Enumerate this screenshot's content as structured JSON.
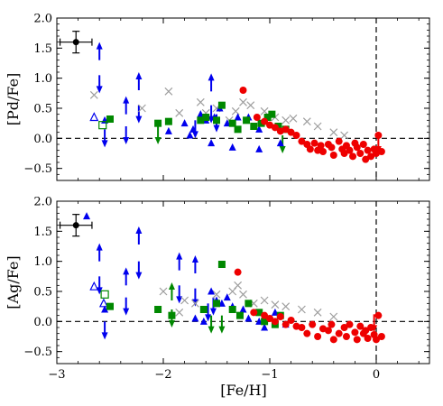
{
  "figure": {
    "xlabel": "[Fe/H]"
  },
  "chart_data": [
    {
      "type": "scatter",
      "ylabel": "[Pd/Fe]",
      "xlim": [
        -3.0,
        0.5
      ],
      "ylim": [
        -0.7,
        2.0
      ],
      "xticks": [
        -3,
        -2,
        -1,
        0
      ],
      "xtick_labels": [
        "−3",
        "−2",
        "−1",
        "0"
      ],
      "yticks": [
        -0.5,
        0.0,
        0.5,
        1.0,
        1.5,
        2.0
      ],
      "ytick_labels": [
        "−0.5",
        "0.0",
        "0.5",
        "1.0",
        "1.5",
        "2.0"
      ],
      "dashed_lines": {
        "y": 0.0,
        "x": 0.0
      },
      "error_bar": {
        "x": -2.82,
        "y": 1.6,
        "xerr": 0.15,
        "yerr": 0.18,
        "color": "#000000"
      },
      "series": [
        {
          "marker": "cross",
          "color": "#9e9e9e",
          "points": [
            [
              -2.65,
              0.72
            ],
            [
              -1.95,
              0.78
            ],
            [
              -2.2,
              0.5
            ],
            [
              -1.85,
              0.42
            ],
            [
              -1.65,
              0.6
            ],
            [
              -1.6,
              0.42
            ],
            [
              -1.5,
              0.5
            ],
            [
              -1.38,
              0.3
            ],
            [
              -1.32,
              0.45
            ],
            [
              -1.25,
              0.6
            ],
            [
              -1.18,
              0.55
            ],
            [
              -1.05,
              0.45
            ],
            [
              -0.95,
              0.35
            ],
            [
              -0.85,
              0.3
            ],
            [
              -0.78,
              0.33
            ],
            [
              -0.65,
              0.28
            ],
            [
              -0.55,
              0.2
            ],
            [
              -0.4,
              0.1
            ],
            [
              -0.3,
              0.05
            ]
          ]
        },
        {
          "marker": "triangle",
          "color": "#0000ee",
          "points": [
            [
              -2.55,
              0.3
            ],
            [
              -1.95,
              0.12
            ],
            [
              -1.8,
              0.25
            ],
            [
              -1.72,
              0.15
            ],
            [
              -1.65,
              0.4
            ],
            [
              -1.6,
              0.3
            ],
            [
              -1.52,
              0.35
            ],
            [
              -1.47,
              0.5
            ],
            [
              -1.4,
              0.25
            ],
            [
              -1.3,
              0.35
            ],
            [
              -1.2,
              0.35
            ],
            [
              -1.1,
              0.15
            ],
            [
              -1.55,
              -0.08
            ],
            [
              -1.35,
              -0.15
            ],
            [
              -1.1,
              -0.18
            ],
            [
              -0.9,
              -0.08
            ],
            [
              -1.75,
              0.05
            ]
          ]
        },
        {
          "marker": "triangle-open",
          "color": "#0000ee",
          "points": [
            [
              -2.65,
              0.35
            ]
          ]
        },
        {
          "marker": "square",
          "color": "#008800",
          "points": [
            [
              -2.5,
              0.32
            ],
            [
              -2.05,
              0.25
            ],
            [
              -1.95,
              0.28
            ],
            [
              -1.65,
              0.3
            ],
            [
              -1.6,
              0.35
            ],
            [
              -1.5,
              0.3
            ],
            [
              -1.45,
              0.55
            ],
            [
              -1.35,
              0.25
            ],
            [
              -1.3,
              0.15
            ],
            [
              -1.22,
              0.3
            ],
            [
              -1.15,
              0.2
            ],
            [
              -1.08,
              0.25
            ],
            [
              -1.02,
              0.35
            ],
            [
              -0.98,
              0.4
            ],
            [
              -0.92,
              0.2
            ],
            [
              -0.85,
              0.15
            ]
          ]
        },
        {
          "marker": "square-open",
          "color": "#008800",
          "points": [
            [
              -2.57,
              0.22
            ]
          ]
        },
        {
          "marker": "circle",
          "color": "#ee0000",
          "points": [
            [
              -1.25,
              0.8
            ],
            [
              -1.12,
              0.35
            ],
            [
              -1.05,
              0.28
            ],
            [
              -1.0,
              0.22
            ],
            [
              -0.95,
              0.18
            ],
            [
              -0.9,
              0.12
            ],
            [
              -0.85,
              0.15
            ],
            [
              -0.8,
              0.1
            ],
            [
              -0.75,
              0.05
            ],
            [
              -0.7,
              -0.05
            ],
            [
              -0.65,
              -0.1
            ],
            [
              -0.62,
              -0.18
            ],
            [
              -0.58,
              -0.08
            ],
            [
              -0.55,
              -0.2
            ],
            [
              -0.52,
              -0.12
            ],
            [
              -0.5,
              -0.22
            ],
            [
              -0.45,
              -0.1
            ],
            [
              -0.42,
              -0.15
            ],
            [
              -0.4,
              -0.28
            ],
            [
              -0.35,
              -0.05
            ],
            [
              -0.32,
              -0.18
            ],
            [
              -0.3,
              -0.25
            ],
            [
              -0.28,
              -0.12
            ],
            [
              -0.25,
              -0.2
            ],
            [
              -0.22,
              -0.3
            ],
            [
              -0.2,
              -0.08
            ],
            [
              -0.18,
              -0.15
            ],
            [
              -0.15,
              -0.25
            ],
            [
              -0.12,
              -0.1
            ],
            [
              -0.1,
              -0.35
            ],
            [
              -0.08,
              -0.2
            ],
            [
              -0.05,
              -0.3
            ],
            [
              -0.02,
              -0.18
            ],
            [
              0.0,
              -0.25
            ],
            [
              0.02,
              0.05
            ],
            [
              0.05,
              -0.22
            ]
          ]
        }
      ],
      "limits": [
        {
          "x": -2.6,
          "y": 1.3,
          "dir": "up",
          "color": "#0000ee"
        },
        {
          "x": -2.6,
          "y": 1.05,
          "dir": "down",
          "color": "#0000ee"
        },
        {
          "x": -2.55,
          "y": 0.15,
          "dir": "down",
          "color": "#0000ee"
        },
        {
          "x": -2.35,
          "y": 0.4,
          "dir": "up",
          "color": "#0000ee"
        },
        {
          "x": -2.35,
          "y": 0.2,
          "dir": "down",
          "color": "#0000ee"
        },
        {
          "x": -2.23,
          "y": 0.8,
          "dir": "up",
          "color": "#0000ee"
        },
        {
          "x": -2.23,
          "y": 0.55,
          "dir": "down",
          "color": "#0000ee"
        },
        {
          "x": -1.55,
          "y": 0.78,
          "dir": "up",
          "color": "#0000ee"
        },
        {
          "x": -1.55,
          "y": 0.55,
          "dir": "down",
          "color": "#0000ee"
        },
        {
          "x": -1.5,
          "y": 0.4,
          "dir": "down",
          "color": "#0000ee"
        },
        {
          "x": -1.7,
          "y": 0.3,
          "dir": "down",
          "color": "#0000ee"
        },
        {
          "x": -2.05,
          "y": 0.2,
          "dir": "down",
          "color": "#008800"
        },
        {
          "x": -0.88,
          "y": 0.05,
          "dir": "down",
          "color": "#008800"
        },
        {
          "x": 0.02,
          "y": 0.05,
          "dir": "down",
          "color": "#ee0000"
        }
      ]
    },
    {
      "type": "scatter",
      "ylabel": "[Ag/Fe]",
      "xlim": [
        -3.0,
        0.5
      ],
      "ylim": [
        -0.7,
        2.0
      ],
      "xticks": [
        -3,
        -2,
        -1,
        0
      ],
      "xtick_labels": [
        "−3",
        "−2",
        "−1",
        "0"
      ],
      "yticks": [
        -0.5,
        0.0,
        0.5,
        1.0,
        1.5,
        2.0
      ],
      "ytick_labels": [
        "−0.5",
        "0.0",
        "0.5",
        "1.0",
        "1.5",
        "2.0"
      ],
      "dashed_lines": {
        "y": 0.0,
        "x": 0.0
      },
      "error_bar": {
        "x": -2.82,
        "y": 1.6,
        "xerr": 0.15,
        "yerr": 0.18,
        "color": "#000000"
      },
      "series": [
        {
          "marker": "cross",
          "color": "#9e9e9e",
          "points": [
            [
              -2.0,
              0.5
            ],
            [
              -1.8,
              0.35
            ],
            [
              -1.7,
              0.3
            ],
            [
              -1.5,
              0.45
            ],
            [
              -1.35,
              0.5
            ],
            [
              -1.3,
              0.6
            ],
            [
              -1.25,
              0.45
            ],
            [
              -1.15,
              0.3
            ],
            [
              -1.05,
              0.35
            ],
            [
              -0.95,
              0.28
            ],
            [
              -0.85,
              0.25
            ],
            [
              -0.7,
              0.2
            ],
            [
              -0.55,
              0.15
            ],
            [
              -0.4,
              0.08
            ],
            [
              -1.85,
              0.15
            ]
          ]
        },
        {
          "marker": "triangle",
          "color": "#0000ee",
          "points": [
            [
              -2.72,
              1.75
            ],
            [
              -2.55,
              0.2
            ],
            [
              -1.55,
              0.5
            ],
            [
              -1.5,
              0.35
            ],
            [
              -1.45,
              0.3
            ],
            [
              -1.35,
              0.25
            ],
            [
              -1.25,
              0.2
            ],
            [
              -1.2,
              0.05
            ],
            [
              -1.1,
              0.0
            ],
            [
              -1.05,
              -0.1
            ],
            [
              -0.95,
              0.15
            ],
            [
              -0.85,
              -0.05
            ],
            [
              -1.7,
              0.05
            ],
            [
              -1.62,
              0.0
            ],
            [
              -1.4,
              0.4
            ]
          ]
        },
        {
          "marker": "triangle-open",
          "color": "#0000ee",
          "points": [
            [
              -2.65,
              0.58
            ],
            [
              -2.56,
              0.3
            ]
          ]
        },
        {
          "marker": "square",
          "color": "#008800",
          "points": [
            [
              -2.5,
              0.25
            ],
            [
              -2.05,
              0.2
            ],
            [
              -1.92,
              0.1
            ],
            [
              -1.62,
              0.2
            ],
            [
              -1.5,
              0.3
            ],
            [
              -1.45,
              0.95
            ],
            [
              -1.35,
              0.2
            ],
            [
              -1.28,
              0.1
            ],
            [
              -1.2,
              0.3
            ],
            [
              -1.1,
              0.15
            ],
            [
              -1.05,
              0.0
            ],
            [
              -0.95,
              -0.05
            ],
            [
              -0.9,
              0.1
            ]
          ]
        },
        {
          "marker": "square-open",
          "color": "#008800",
          "points": [
            [
              -2.55,
              0.45
            ]
          ]
        },
        {
          "marker": "circle",
          "color": "#ee0000",
          "points": [
            [
              -1.3,
              0.82
            ],
            [
              -1.15,
              0.15
            ],
            [
              -1.05,
              0.1
            ],
            [
              -1.0,
              0.05
            ],
            [
              -0.95,
              0.0
            ],
            [
              -0.9,
              0.08
            ],
            [
              -0.85,
              -0.05
            ],
            [
              -0.8,
              0.02
            ],
            [
              -0.75,
              -0.08
            ],
            [
              -0.7,
              -0.1
            ],
            [
              -0.65,
              -0.2
            ],
            [
              -0.6,
              -0.05
            ],
            [
              -0.55,
              -0.25
            ],
            [
              -0.5,
              -0.12
            ],
            [
              -0.45,
              -0.15
            ],
            [
              -0.42,
              -0.05
            ],
            [
              -0.4,
              -0.3
            ],
            [
              -0.35,
              -0.2
            ],
            [
              -0.3,
              -0.1
            ],
            [
              -0.28,
              -0.25
            ],
            [
              -0.25,
              -0.05
            ],
            [
              -0.2,
              -0.18
            ],
            [
              -0.18,
              -0.3
            ],
            [
              -0.15,
              -0.08
            ],
            [
              -0.12,
              -0.2
            ],
            [
              -0.1,
              -0.15
            ],
            [
              -0.08,
              -0.28
            ],
            [
              -0.05,
              -0.1
            ],
            [
              -0.02,
              -0.22
            ],
            [
              0.0,
              -0.3
            ],
            [
              0.02,
              0.1
            ],
            [
              0.05,
              -0.25
            ]
          ]
        }
      ],
      "limits": [
        {
          "x": -2.6,
          "y": 1.0,
          "dir": "up",
          "color": "#0000ee"
        },
        {
          "x": -2.6,
          "y": 0.75,
          "dir": "down",
          "color": "#0000ee"
        },
        {
          "x": -2.55,
          "y": 0.0,
          "dir": "down",
          "color": "#0000ee"
        },
        {
          "x": -2.35,
          "y": 0.6,
          "dir": "up",
          "color": "#0000ee"
        },
        {
          "x": -2.35,
          "y": 0.4,
          "dir": "down",
          "color": "#0000ee"
        },
        {
          "x": -2.23,
          "y": 1.28,
          "dir": "up",
          "color": "#0000ee"
        },
        {
          "x": -2.23,
          "y": 1.0,
          "dir": "down",
          "color": "#0000ee"
        },
        {
          "x": -1.85,
          "y": 0.85,
          "dir": "up",
          "color": "#0000ee"
        },
        {
          "x": -1.85,
          "y": 0.6,
          "dir": "down",
          "color": "#0000ee"
        },
        {
          "x": -1.7,
          "y": 0.8,
          "dir": "up",
          "color": "#0000ee"
        },
        {
          "x": -1.7,
          "y": 0.55,
          "dir": "down",
          "color": "#0000ee"
        },
        {
          "x": -1.58,
          "y": 0.3,
          "dir": "down",
          "color": "#0000ee"
        },
        {
          "x": -1.53,
          "y": 0.4,
          "dir": "down",
          "color": "#0000ee"
        },
        {
          "x": -1.92,
          "y": 0.35,
          "dir": "up",
          "color": "#008800"
        },
        {
          "x": -1.92,
          "y": 0.2,
          "dir": "down",
          "color": "#008800"
        },
        {
          "x": -1.55,
          "y": 0.1,
          "dir": "down",
          "color": "#008800"
        },
        {
          "x": -1.45,
          "y": 0.1,
          "dir": "down",
          "color": "#008800"
        },
        {
          "x": -0.02,
          "y": 0.12,
          "dir": "down",
          "color": "#ee0000"
        }
      ]
    }
  ]
}
